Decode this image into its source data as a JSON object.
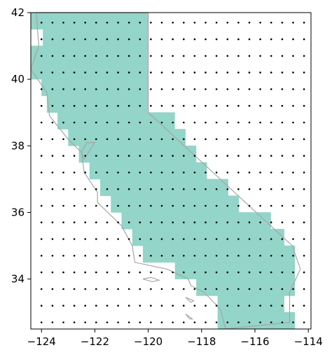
{
  "chart_data": {
    "type": "scatter",
    "title": "",
    "xlabel": "",
    "ylabel": "",
    "xlim": [
      -124.4,
      -113.9
    ],
    "ylim": [
      32.5,
      42.0
    ],
    "x_ticks": [
      -124,
      -122,
      -120,
      -118,
      -116,
      -114
    ],
    "x_tick_labels": [
      "−124",
      "−122",
      "−120",
      "−118",
      "−116",
      "−114"
    ],
    "y_ticks": [
      34,
      36,
      38,
      40,
      42
    ],
    "y_tick_labels": [
      "34",
      "36",
      "38",
      "40",
      "42"
    ],
    "grid_points": {
      "x_start": -124.0,
      "x_step": 0.41,
      "x_count": 25,
      "y_start": 32.7,
      "y_step": 0.5,
      "y_count": 19
    },
    "masked_region": {
      "color": "#93d5c8",
      "cell_width": 0.41,
      "cell_height": 0.5,
      "rows": [
        {
          "y": 41.75,
          "x_from": -124.4,
          "x_to": -120.0
        },
        {
          "y": 41.25,
          "x_from": -123.95,
          "x_to": -120.0
        },
        {
          "y": 40.75,
          "x_from": -124.4,
          "x_to": -120.0
        },
        {
          "y": 40.25,
          "x_from": -124.4,
          "x_to": -120.0
        },
        {
          "y": 39.75,
          "x_from": -124.0,
          "x_to": -120.0
        },
        {
          "y": 39.25,
          "x_from": -123.8,
          "x_to": -120.0
        },
        {
          "y": 38.75,
          "x_from": -123.4,
          "x_to": -119.0
        },
        {
          "y": 38.25,
          "x_from": -123.0,
          "x_to": -118.6
        },
        {
          "y": 37.75,
          "x_from": -122.6,
          "x_to": -118.2
        },
        {
          "y": 37.25,
          "x_from": -122.2,
          "x_to": -117.8
        },
        {
          "y": 36.75,
          "x_from": -121.8,
          "x_to": -117.0
        },
        {
          "y": 36.25,
          "x_from": -121.4,
          "x_to": -116.6
        },
        {
          "y": 35.75,
          "x_from": -121.0,
          "x_to": -115.4
        },
        {
          "y": 35.25,
          "x_from": -120.6,
          "x_to": -114.9
        },
        {
          "y": 34.75,
          "x_from": -120.2,
          "x_to": -114.5
        },
        {
          "y": 34.25,
          "x_from": -119.0,
          "x_to": -114.5
        },
        {
          "y": 33.75,
          "x_from": -118.2,
          "x_to": -114.5
        },
        {
          "y": 33.25,
          "x_from": -117.4,
          "x_to": -114.9
        },
        {
          "y": 32.75,
          "x_from": -117.4,
          "x_to": -114.5
        }
      ]
    },
    "boundary_color": "#a6a6a6",
    "boundary": [
      [
        -124.2,
        42.0
      ],
      [
        -120.0,
        42.0
      ],
      [
        -120.0,
        39.0
      ],
      [
        -114.6,
        35.0
      ],
      [
        -114.3,
        34.3
      ],
      [
        -114.7,
        33.6
      ],
      [
        -114.7,
        32.7
      ],
      [
        -117.1,
        32.5
      ],
      [
        -117.3,
        33.1
      ],
      [
        -117.9,
        33.6
      ],
      [
        -118.4,
        33.8
      ],
      [
        -118.5,
        34.0
      ],
      [
        -119.3,
        34.3
      ],
      [
        -120.5,
        34.5
      ],
      [
        -120.6,
        35.0
      ],
      [
        -121.0,
        35.6
      ],
      [
        -121.9,
        36.3
      ],
      [
        -121.9,
        36.6
      ],
      [
        -122.4,
        37.2
      ],
      [
        -122.5,
        37.8
      ],
      [
        -123.0,
        38.2
      ],
      [
        -123.7,
        38.9
      ],
      [
        -123.8,
        39.6
      ],
      [
        -124.4,
        40.3
      ],
      [
        -124.1,
        41.0
      ],
      [
        -124.2,
        42.0
      ]
    ],
    "bay": [
      [
        -122.5,
        37.8
      ],
      [
        -122.3,
        38.1
      ],
      [
        -122.0,
        38.1
      ],
      [
        -122.4,
        37.6
      ],
      [
        -122.5,
        37.8
      ]
    ],
    "islands": [
      [
        [
          -120.2,
          34.0
        ],
        [
          -119.9,
          34.05
        ],
        [
          -119.6,
          33.97
        ],
        [
          -119.85,
          33.92
        ],
        [
          -120.2,
          34.0
        ]
      ],
      [
        [
          -118.6,
          33.45
        ],
        [
          -118.3,
          33.35
        ],
        [
          -118.4,
          33.3
        ],
        [
          -118.6,
          33.45
        ]
      ],
      [
        [
          -118.6,
          32.95
        ],
        [
          -118.35,
          32.8
        ],
        [
          -118.45,
          32.8
        ],
        [
          -118.6,
          32.95
        ]
      ]
    ]
  }
}
